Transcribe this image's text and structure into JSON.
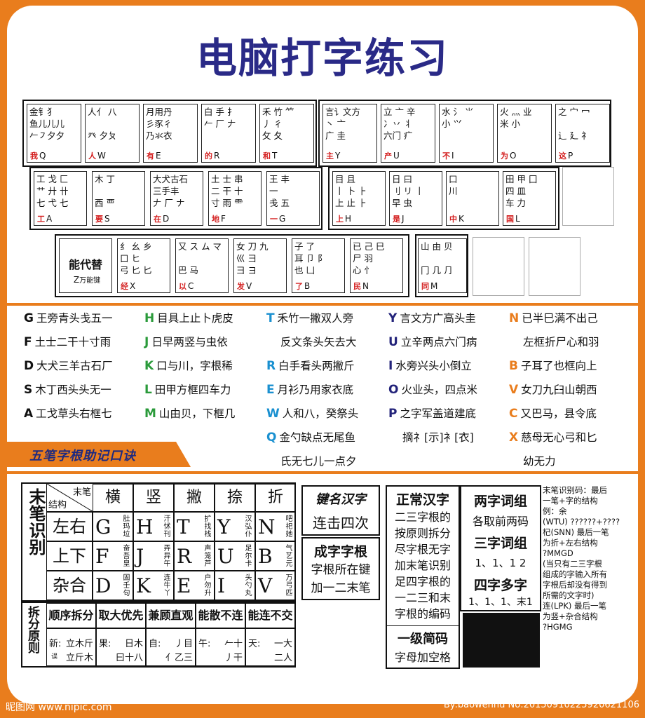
{
  "title": "电脑打字练习",
  "keyboard": {
    "row1_left": [
      {
        "roots": "金钅犭\n鱼儿儿儿\n𠂉㇇夕夕",
        "word": "我",
        "key": "Q"
      },
      {
        "roots": "人亻 八\n\n癶 夕ㄆ",
        "word": "人",
        "key": "W"
      },
      {
        "roots": "月用丹\n彡豕彳\n乃氺衣",
        "word": "有",
        "key": "E"
      },
      {
        "roots": "白 手 扌\n𠂉 厂 𠂇\n",
        "word": "的",
        "key": "R"
      },
      {
        "roots": "禾 竹 ⺮\n丿 彳\n攵 夂",
        "word": "和",
        "key": "T"
      }
    ],
    "row1_right": [
      {
        "roots": "言讠文方\n丶 亠\n广 圭",
        "word": "主",
        "key": "Y"
      },
      {
        "roots": "立 亠 辛\n冫丷 丬\n六门 疒",
        "word": "产",
        "key": "U"
      },
      {
        "roots": "水 氵 ⺌\n小 ⺍\n",
        "word": "不",
        "key": "I"
      },
      {
        "roots": "火 灬 业\n米 小\n",
        "word": "为",
        "key": "O"
      },
      {
        "roots": "之 宀 冖\n\n辶 廴 礻",
        "word": "这",
        "key": "P"
      }
    ],
    "row2_left": [
      {
        "roots": "工 戈 匚\n艹 廾 卄\n七 弋 七",
        "word": "工",
        "key": "A"
      },
      {
        "roots": "木 丁\n\n西 覀",
        "word": "要",
        "key": "S"
      },
      {
        "roots": "大犬古石\n三手丰\n𠂇 厂 ナ",
        "word": "在",
        "key": "D"
      },
      {
        "roots": "土 士 串\n二 干 十\n寸 雨 ⻗",
        "word": "地",
        "key": "F"
      },
      {
        "roots": "王 丰\n一\n戋 五",
        "word": "一",
        "key": "G"
      }
    ],
    "row2_right": [
      {
        "roots": "目 且\n丨 卜 ⺊\n上 止 ⺊",
        "word": "上",
        "key": "H"
      },
      {
        "roots": "日 曰\n刂 リ 丨\n早 虫",
        "word": "是",
        "key": "J"
      },
      {
        "roots": "口\n川\n",
        "word": "中",
        "key": "K"
      },
      {
        "roots": "田 甲 囗\n四 皿\n车 力",
        "word": "国",
        "key": "L"
      }
    ],
    "row3_left": [
      {
        "roots": "",
        "word": "能代替",
        "key": "Z",
        "note": "万能键"
      },
      {
        "roots": "纟 幺 乡\n口 ヒ\n弓 匕 匕",
        "word": "经",
        "key": "X"
      },
      {
        "roots": "又 ス ム マ\n\n巴 马",
        "word": "以",
        "key": "C"
      },
      {
        "roots": "女 刀 九\n巛 彐\n彐 ヨ",
        "word": "发",
        "key": "V"
      },
      {
        "roots": "子 了\n耳 卩 阝\n也 凵",
        "word": "了",
        "key": "B"
      },
      {
        "roots": "已 己 巳\n尸 羽\n心 忄",
        "word": "民",
        "key": "N"
      }
    ],
    "row3_right": [
      {
        "roots": "山 由 贝\n\n冂 几 ⺆",
        "word": "同",
        "key": "M"
      }
    ]
  },
  "mnemonics": [
    {
      "k": "G",
      "t": "王旁青头戋五一",
      "c": "black"
    },
    {
      "k": "H",
      "t": "目具上止卜虎皮",
      "c": "green"
    },
    {
      "k": "T",
      "t": "禾竹一撇双人旁",
      "c": "blue"
    },
    {
      "k": "Y",
      "t": "言文方广高头圭",
      "c": "navy"
    },
    {
      "k": "N",
      "t": "已半巳满不出己",
      "c": "orange"
    },
    {
      "k": "F",
      "t": "土士二干十寸雨",
      "c": "black"
    },
    {
      "k": "J",
      "t": "日早两竖与虫依",
      "c": "green"
    },
    {
      "k": "",
      "t": "反文条头矢去大",
      "c": "blue"
    },
    {
      "k": "U",
      "t": "立辛两点六门病",
      "c": "navy"
    },
    {
      "k": "",
      "t": "左框折尸心和羽",
      "c": "orange"
    },
    {
      "k": "D",
      "t": "大犬三羊古石厂",
      "c": "black"
    },
    {
      "k": "K",
      "t": "口与川，字根稀",
      "c": "green"
    },
    {
      "k": "R",
      "t": "白手看头两撇斤",
      "c": "blue"
    },
    {
      "k": "I",
      "t": "水旁兴头小倒立",
      "c": "navy"
    },
    {
      "k": "B",
      "t": "子耳了也框向上",
      "c": "orange"
    },
    {
      "k": "S",
      "t": "木丁西头头无一",
      "c": "black"
    },
    {
      "k": "L",
      "t": "田甲方框四车力",
      "c": "green"
    },
    {
      "k": "E",
      "t": "月衫乃用家衣底",
      "c": "blue"
    },
    {
      "k": "O",
      "t": "火业头，四点米",
      "c": "navy"
    },
    {
      "k": "V",
      "t": "女刀九臼山朝西",
      "c": "orange"
    },
    {
      "k": "A",
      "t": "工戈草头右框七",
      "c": "black"
    },
    {
      "k": "M",
      "t": "山由贝，下框几",
      "c": "green"
    },
    {
      "k": "W",
      "t": "人和八，癸祭头",
      "c": "blue"
    },
    {
      "k": "P",
      "t": "之字军盖道建底",
      "c": "navy"
    },
    {
      "k": "C",
      "t": "又巴马，县令底",
      "c": "orange"
    },
    {
      "k": "Q",
      "t": "金勺缺点无尾鱼",
      "c": "blue"
    },
    {
      "k": "",
      "t": "摘礻[示]衤[衣]",
      "c": "navy"
    },
    {
      "k": "X",
      "t": "慈母无心弓和匕",
      "c": "orange"
    },
    {
      "k": "",
      "t": "氏无七儿一点夕",
      "c": "blue"
    },
    {
      "k": "",
      "t": "幼无力",
      "c": "orange"
    }
  ],
  "banner": "五笔字根助记口诀",
  "stroke_table": {
    "side_label": "末笔识别",
    "corner_top": "末笔",
    "corner_bottom": "结构",
    "headers": [
      "横",
      "竖",
      "撇",
      "捺",
      "折"
    ],
    "rows": [
      {
        "label": "左右",
        "cells": [
          [
            "G",
            "肚玛垃"
          ],
          [
            "H",
            "汗怵刊"
          ],
          [
            "T",
            "扩找栈"
          ],
          [
            "Y",
            "汉弘仆"
          ],
          [
            "N",
            "吧祀她"
          ]
        ]
      },
      {
        "label": "上下",
        "cells": [
          [
            "F",
            "奋吾皇"
          ],
          [
            "J",
            "弄异午"
          ],
          [
            "R",
            "声笼芦"
          ],
          [
            "U",
            "足尔卡"
          ],
          [
            "B",
            "气艺元"
          ]
        ]
      },
      {
        "label": "杂合",
        "cells": [
          [
            "D",
            "固壬句"
          ],
          [
            "K",
            "连牛丫"
          ],
          [
            "E",
            "户勿升"
          ],
          [
            "I",
            "头勺丸"
          ],
          [
            "V",
            "万弓匹"
          ]
        ]
      }
    ]
  },
  "split_table": {
    "side_label": "拆分原则",
    "headers": [
      "顺序拆分",
      "取大优先",
      "兼顾直观",
      "能散不连",
      "能连不交"
    ],
    "examples": [
      {
        "a": "新:",
        "b": "立木斤",
        "c": "误",
        "d": "立斤木"
      },
      {
        "a": "果:",
        "b": "日木",
        "c": "",
        "d": "曰十八"
      },
      {
        "a": "自:",
        "b": "丿目",
        "c": "",
        "d": "亻乙三"
      },
      {
        "a": "午:",
        "b": "𠂉十",
        "c": "",
        "d": "丿干"
      },
      {
        "a": "天:",
        "b": "一大",
        "c": "",
        "d": "二人"
      }
    ]
  },
  "key_name": {
    "title": "键名汉字",
    "text": "连击四次"
  },
  "char_root": {
    "title": "成字字根",
    "lines": [
      "字根所在键",
      "加一二末笔"
    ]
  },
  "normal_char": {
    "title": "正常汉字",
    "lines": [
      "二三字根的",
      "按原则拆分",
      "尽字根无字",
      "加末笔识别",
      "足四字根的",
      "一二三和末",
      "字根的编码"
    ]
  },
  "level1": {
    "title": "一级简码",
    "text": "字母加空格"
  },
  "two_word": {
    "title": "两字词组",
    "text": "各取前两码"
  },
  "three_word": {
    "title": "三字词组",
    "text": "1、1、1 2"
  },
  "four_word": {
    "title": "四字多字",
    "text": "1、1、1、末1"
  },
  "note_lines": [
    "末笔识别码：最后",
    "一笔+字的结构",
    "例：余",
    "(WTU) ??????+????",
    "杞(SNN) 最后一笔",
    "为折+左右结构",
    "?MMGD",
    "(当只有二三字根",
    "组成的字输入所有",
    "字根后却没有得到",
    "所需的文字时)",
    "连(LPK) 最后一笔",
    "为竖+杂合结构",
    "?HGMG"
  ],
  "footer_left": "昵图网 www.nipic.com",
  "footer_right": "By:baowenhu No:20150910225920621106"
}
